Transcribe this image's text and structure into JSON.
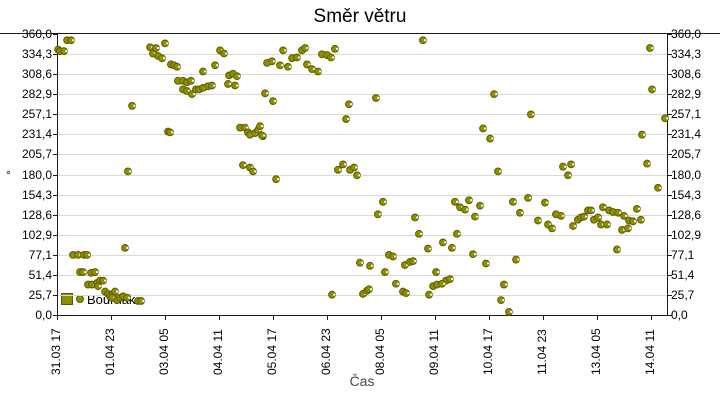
{
  "title": "Směr větru",
  "axes": {
    "y_unit_label": "°",
    "x_title": "Čas",
    "y_ticks": [
      "360,0",
      "334,3",
      "308,6",
      "282,9",
      "257,1",
      "231,4",
      "205,7",
      "180,0",
      "154,3",
      "128,6",
      "102,9",
      "77,1",
      "51,4",
      "25,7",
      "0,0"
    ],
    "x_ticks": [
      "31.03 17",
      "01.04 23",
      "03.04 05",
      "04.04 11",
      "05.04 17",
      "06.04 23",
      "08.04 05",
      "09.04 11",
      "10.04 17",
      "11.04 23",
      "13.04 05",
      "14.04 11"
    ]
  },
  "legend": {
    "label": "Bouřňák"
  },
  "colors": {
    "marker_fill": "#8F8F00",
    "marker_stroke": "#5C5C00",
    "marker_highlight": "#FFFFFF",
    "grid": "#D9D9D9",
    "axis": "#1a1a1a"
  },
  "chart_data": {
    "type": "scatter",
    "title": "Směr větru",
    "xlabel": "Čas",
    "ylabel": "°",
    "series_name": "Bouřňák",
    "x_unit": "hours since 31.03 17:00",
    "x_tick_step_hours": 30,
    "xlim": [
      0,
      339
    ],
    "ylim": [
      0,
      360
    ],
    "y_tick_step": 25.714,
    "grid": "horizontal-only",
    "legend_position": "bottom-left-inside",
    "points": [
      [
        0.6,
        340
      ],
      [
        1.7,
        338
      ],
      [
        3.9,
        338
      ],
      [
        5.6,
        352
      ],
      [
        7.8,
        352
      ],
      [
        41.7,
        268
      ],
      [
        39.4,
        184
      ],
      [
        37.8,
        86
      ],
      [
        8.9,
        77
      ],
      [
        11.7,
        77
      ],
      [
        15,
        77
      ],
      [
        16.7,
        77
      ],
      [
        12.8,
        55
      ],
      [
        14.4,
        55
      ],
      [
        18.9,
        54
      ],
      [
        21.1,
        55
      ],
      [
        17.2,
        39
      ],
      [
        19.4,
        39
      ],
      [
        22.2,
        41
      ],
      [
        23.9,
        44
      ],
      [
        25.6,
        44
      ],
      [
        22.8,
        37
      ],
      [
        26.7,
        30
      ],
      [
        28.3,
        27
      ],
      [
        29.4,
        24
      ],
      [
        31.1,
        27
      ],
      [
        32.2,
        30
      ],
      [
        30.6,
        22
      ],
      [
        33.3,
        19
      ],
      [
        35,
        22
      ],
      [
        36.7,
        24
      ],
      [
        38.9,
        22
      ],
      [
        45,
        18
      ],
      [
        46.7,
        18
      ],
      [
        51.7,
        343
      ],
      [
        53.3,
        335
      ],
      [
        55,
        342
      ],
      [
        56.1,
        332
      ],
      [
        58.3,
        329
      ],
      [
        60,
        348
      ],
      [
        63.3,
        321
      ],
      [
        65,
        320
      ],
      [
        66.7,
        318
      ],
      [
        67.2,
        300
      ],
      [
        70,
        300
      ],
      [
        72.2,
        298
      ],
      [
        74.4,
        300
      ],
      [
        70,
        289
      ],
      [
        72.2,
        287
      ],
      [
        75,
        283
      ],
      [
        77.2,
        289
      ],
      [
        78.9,
        289
      ],
      [
        81.1,
        291
      ],
      [
        83.9,
        293
      ],
      [
        86.1,
        294
      ],
      [
        81.1,
        312
      ],
      [
        87.8,
        320
      ],
      [
        90.6,
        339
      ],
      [
        92.8,
        335
      ],
      [
        95.6,
        307
      ],
      [
        97.8,
        309
      ],
      [
        100,
        306
      ],
      [
        95,
        296
      ],
      [
        98.9,
        294
      ],
      [
        61.7,
        235
      ],
      [
        62.8,
        234
      ],
      [
        101.7,
        240
      ],
      [
        104.4,
        240
      ],
      [
        106.1,
        234
      ],
      [
        107.2,
        231
      ],
      [
        110,
        233
      ],
      [
        111.7,
        237
      ],
      [
        114.4,
        229
      ],
      [
        103.3,
        192
      ],
      [
        107.2,
        189
      ],
      [
        108.9,
        184
      ],
      [
        115.6,
        284
      ],
      [
        120,
        274
      ],
      [
        112.8,
        242
      ],
      [
        113.9,
        230
      ],
      [
        121.7,
        174
      ],
      [
        116.7,
        323
      ],
      [
        119.4,
        325
      ],
      [
        123.9,
        320
      ],
      [
        125.6,
        339
      ],
      [
        128.3,
        318
      ],
      [
        130.6,
        329
      ],
      [
        133.3,
        330
      ],
      [
        136.1,
        339
      ],
      [
        137.8,
        342
      ],
      [
        138.9,
        321
      ],
      [
        141.7,
        315
      ],
      [
        145,
        312
      ],
      [
        147.2,
        334
      ],
      [
        150,
        333
      ],
      [
        152.2,
        330
      ],
      [
        154.4,
        341
      ],
      [
        156.1,
        186
      ],
      [
        158.9,
        193
      ],
      [
        162.8,
        186
      ],
      [
        165,
        189
      ],
      [
        166.7,
        179
      ],
      [
        162.2,
        270
      ],
      [
        160.6,
        251
      ],
      [
        177.2,
        278
      ],
      [
        181.1,
        145
      ],
      [
        178.3,
        129
      ],
      [
        184.4,
        77
      ],
      [
        186.7,
        75
      ],
      [
        182.2,
        55
      ],
      [
        188.3,
        40
      ],
      [
        168.3,
        67
      ],
      [
        173.9,
        63
      ],
      [
        170,
        27
      ],
      [
        172.2,
        31
      ],
      [
        173.3,
        33
      ],
      [
        152.8,
        26
      ],
      [
        192.2,
        30
      ],
      [
        193.9,
        28
      ],
      [
        203.3,
        352
      ],
      [
        198.9,
        125
      ],
      [
        201.1,
        104
      ],
      [
        206.1,
        85
      ],
      [
        214.4,
        93
      ],
      [
        219.4,
        86
      ],
      [
        221.1,
        145
      ],
      [
        223.9,
        138
      ],
      [
        222.2,
        104
      ],
      [
        193.3,
        64
      ],
      [
        196.1,
        68
      ],
      [
        197.8,
        69
      ],
      [
        210.6,
        55
      ],
      [
        216.1,
        44
      ],
      [
        218.3,
        46
      ],
      [
        206.7,
        26
      ],
      [
        208.9,
        37
      ],
      [
        211.1,
        39
      ],
      [
        213.9,
        40
      ],
      [
        228.9,
        147
      ],
      [
        235,
        140
      ],
      [
        226.7,
        135
      ],
      [
        232.2,
        126
      ],
      [
        236.7,
        239
      ],
      [
        240.6,
        226
      ],
      [
        242.8,
        283
      ],
      [
        245,
        184
      ],
      [
        231.1,
        78
      ],
      [
        238.3,
        66
      ],
      [
        248.3,
        39
      ],
      [
        246.7,
        19
      ],
      [
        251.1,
        4
      ],
      [
        253.3,
        145
      ],
      [
        255,
        71
      ],
      [
        257.2,
        131
      ],
      [
        261.7,
        150
      ],
      [
        263.3,
        257
      ],
      [
        267.2,
        121
      ],
      [
        271.1,
        144
      ],
      [
        272.8,
        116
      ],
      [
        275,
        111
      ],
      [
        277.2,
        129
      ],
      [
        280,
        127
      ],
      [
        281.1,
        190
      ],
      [
        283.9,
        179
      ],
      [
        285.6,
        193
      ],
      [
        286.7,
        114
      ],
      [
        289.4,
        122
      ],
      [
        291.1,
        125
      ],
      [
        292.8,
        126
      ],
      [
        295,
        134
      ],
      [
        296.7,
        134
      ],
      [
        298.3,
        122
      ],
      [
        300.6,
        125
      ],
      [
        303.3,
        138
      ],
      [
        306.7,
        134
      ],
      [
        308.9,
        132
      ],
      [
        311.7,
        131
      ],
      [
        302.2,
        116
      ],
      [
        305.6,
        116
      ],
      [
        315,
        127
      ],
      [
        317.8,
        121
      ],
      [
        320,
        120
      ],
      [
        322.2,
        136
      ],
      [
        324.4,
        122
      ],
      [
        313.9,
        109
      ],
      [
        317.2,
        111
      ],
      [
        311.1,
        84
      ],
      [
        325,
        231
      ],
      [
        327.8,
        194
      ],
      [
        329.4,
        342
      ],
      [
        330.6,
        289
      ],
      [
        333.9,
        163
      ],
      [
        337.8,
        252
      ]
    ]
  }
}
